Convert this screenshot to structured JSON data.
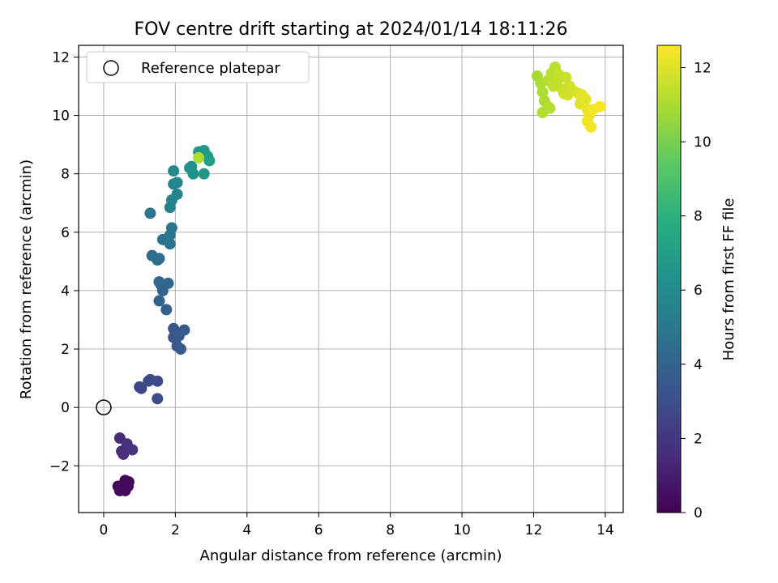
{
  "chart_data": {
    "type": "scatter",
    "title": "FOV centre drift starting at 2024/01/14 18:11:26",
    "xlabel": "Angular distance from reference (arcmin)",
    "ylabel": "Rotation from reference (arcmin)",
    "xlim": [
      -0.7,
      14.5
    ],
    "ylim": [
      -3.6,
      12.4
    ],
    "xticks": [
      0,
      2,
      4,
      6,
      8,
      10,
      12,
      14
    ],
    "yticks": [
      -2,
      0,
      2,
      4,
      6,
      8,
      10,
      12
    ],
    "xtick_labels": [
      "0",
      "2",
      "4",
      "6",
      "8",
      "10",
      "12",
      "14"
    ],
    "ytick_labels": [
      "−2",
      "0",
      "2",
      "4",
      "6",
      "8",
      "10",
      "12"
    ],
    "grid": true,
    "legend": {
      "position": "top-left",
      "entry": "Reference platepar"
    },
    "reference_point": {
      "x": 0,
      "y": 0
    },
    "colorbar": {
      "label": "Hours from first FF file",
      "range": [
        0,
        12.6
      ],
      "ticks": [
        0,
        2,
        4,
        6,
        8,
        10,
        12
      ],
      "tick_labels": [
        "0",
        "2",
        "4",
        "6",
        "8",
        "10",
        "12"
      ],
      "colormap": "viridis"
    },
    "points": [
      {
        "x": 0.4,
        "y": -2.7,
        "h": 0.1
      },
      {
        "x": 0.5,
        "y": -2.8,
        "h": 0.1
      },
      {
        "x": 0.55,
        "y": -2.65,
        "h": 0.2
      },
      {
        "x": 0.6,
        "y": -2.5,
        "h": 0.2
      },
      {
        "x": 0.7,
        "y": -2.55,
        "h": 0.2
      },
      {
        "x": 0.6,
        "y": -2.85,
        "h": 0.3
      },
      {
        "x": 0.45,
        "y": -2.85,
        "h": 0.3
      },
      {
        "x": 0.68,
        "y": -2.7,
        "h": 0.3
      },
      {
        "x": 0.45,
        "y": -1.05,
        "h": 1.5
      },
      {
        "x": 0.5,
        "y": -1.5,
        "h": 1.6
      },
      {
        "x": 0.55,
        "y": -1.6,
        "h": 1.7
      },
      {
        "x": 0.65,
        "y": -1.25,
        "h": 1.8
      },
      {
        "x": 0.8,
        "y": -1.45,
        "h": 1.9
      },
      {
        "x": 1.0,
        "y": 0.7,
        "h": 2.6
      },
      {
        "x": 1.05,
        "y": 0.65,
        "h": 2.7
      },
      {
        "x": 1.25,
        "y": 0.9,
        "h": 2.8
      },
      {
        "x": 1.3,
        "y": 0.95,
        "h": 2.8
      },
      {
        "x": 1.5,
        "y": 0.9,
        "h": 2.9
      },
      {
        "x": 1.5,
        "y": 0.3,
        "h": 3.0
      },
      {
        "x": 1.95,
        "y": 2.7,
        "h": 3.3
      },
      {
        "x": 1.95,
        "y": 2.4,
        "h": 3.4
      },
      {
        "x": 2.05,
        "y": 2.1,
        "h": 3.4
      },
      {
        "x": 2.1,
        "y": 2.45,
        "h": 3.5
      },
      {
        "x": 2.15,
        "y": 2.0,
        "h": 3.5
      },
      {
        "x": 2.25,
        "y": 2.65,
        "h": 3.6
      },
      {
        "x": 1.75,
        "y": 3.35,
        "h": 3.8
      },
      {
        "x": 1.55,
        "y": 3.65,
        "h": 3.9
      },
      {
        "x": 1.65,
        "y": 4.0,
        "h": 4.0
      },
      {
        "x": 1.55,
        "y": 4.3,
        "h": 4.1
      },
      {
        "x": 1.6,
        "y": 4.2,
        "h": 4.2
      },
      {
        "x": 1.8,
        "y": 4.25,
        "h": 4.2
      },
      {
        "x": 1.35,
        "y": 5.2,
        "h": 4.4
      },
      {
        "x": 1.5,
        "y": 5.05,
        "h": 4.5
      },
      {
        "x": 1.55,
        "y": 5.1,
        "h": 4.5
      },
      {
        "x": 1.65,
        "y": 5.75,
        "h": 4.7
      },
      {
        "x": 1.85,
        "y": 5.6,
        "h": 4.8
      },
      {
        "x": 1.85,
        "y": 5.9,
        "h": 4.9
      },
      {
        "x": 1.9,
        "y": 6.15,
        "h": 4.9
      },
      {
        "x": 1.3,
        "y": 6.65,
        "h": 5.0
      },
      {
        "x": 1.85,
        "y": 6.85,
        "h": 5.5
      },
      {
        "x": 1.9,
        "y": 7.1,
        "h": 5.6
      },
      {
        "x": 2.05,
        "y": 7.3,
        "h": 5.7
      },
      {
        "x": 1.95,
        "y": 7.65,
        "h": 5.8
      },
      {
        "x": 2.05,
        "y": 7.7,
        "h": 5.8
      },
      {
        "x": 1.95,
        "y": 8.1,
        "h": 5.9
      },
      {
        "x": 2.4,
        "y": 8.2,
        "h": 6.2
      },
      {
        "x": 2.5,
        "y": 8.0,
        "h": 6.3
      },
      {
        "x": 2.45,
        "y": 8.25,
        "h": 6.4
      },
      {
        "x": 2.8,
        "y": 8.0,
        "h": 6.6
      },
      {
        "x": 2.65,
        "y": 8.75,
        "h": 6.7
      },
      {
        "x": 2.8,
        "y": 8.8,
        "h": 6.8
      },
      {
        "x": 2.9,
        "y": 8.6,
        "h": 6.9
      },
      {
        "x": 2.95,
        "y": 8.45,
        "h": 7.0
      },
      {
        "x": 2.65,
        "y": 8.55,
        "h": 11.0
      },
      {
        "x": 12.1,
        "y": 11.35,
        "h": 10.9
      },
      {
        "x": 12.2,
        "y": 11.1,
        "h": 11.0
      },
      {
        "x": 12.25,
        "y": 10.8,
        "h": 11.0
      },
      {
        "x": 12.3,
        "y": 10.5,
        "h": 11.0
      },
      {
        "x": 12.4,
        "y": 10.3,
        "h": 11.1
      },
      {
        "x": 12.25,
        "y": 10.1,
        "h": 11.1
      },
      {
        "x": 12.45,
        "y": 10.25,
        "h": 11.2
      },
      {
        "x": 12.4,
        "y": 11.2,
        "h": 11.2
      },
      {
        "x": 12.5,
        "y": 11.45,
        "h": 11.3
      },
      {
        "x": 12.6,
        "y": 11.65,
        "h": 11.3
      },
      {
        "x": 12.55,
        "y": 11.0,
        "h": 11.4
      },
      {
        "x": 12.65,
        "y": 11.2,
        "h": 11.4
      },
      {
        "x": 12.7,
        "y": 11.4,
        "h": 11.5
      },
      {
        "x": 12.8,
        "y": 10.9,
        "h": 11.5
      },
      {
        "x": 12.9,
        "y": 11.3,
        "h": 11.6
      },
      {
        "x": 12.85,
        "y": 10.75,
        "h": 11.6
      },
      {
        "x": 12.95,
        "y": 10.7,
        "h": 11.7
      },
      {
        "x": 13.0,
        "y": 11.0,
        "h": 11.7
      },
      {
        "x": 13.1,
        "y": 10.85,
        "h": 11.8
      },
      {
        "x": 13.25,
        "y": 10.75,
        "h": 11.9
      },
      {
        "x": 13.35,
        "y": 10.7,
        "h": 12.0
      },
      {
        "x": 13.3,
        "y": 10.4,
        "h": 12.0
      },
      {
        "x": 13.45,
        "y": 10.55,
        "h": 12.1
      },
      {
        "x": 13.5,
        "y": 10.2,
        "h": 12.2
      },
      {
        "x": 13.55,
        "y": 10.0,
        "h": 12.2
      },
      {
        "x": 13.5,
        "y": 9.8,
        "h": 12.3
      },
      {
        "x": 13.6,
        "y": 9.6,
        "h": 12.4
      },
      {
        "x": 13.65,
        "y": 10.2,
        "h": 12.4
      },
      {
        "x": 13.85,
        "y": 10.3,
        "h": 12.5
      }
    ]
  }
}
